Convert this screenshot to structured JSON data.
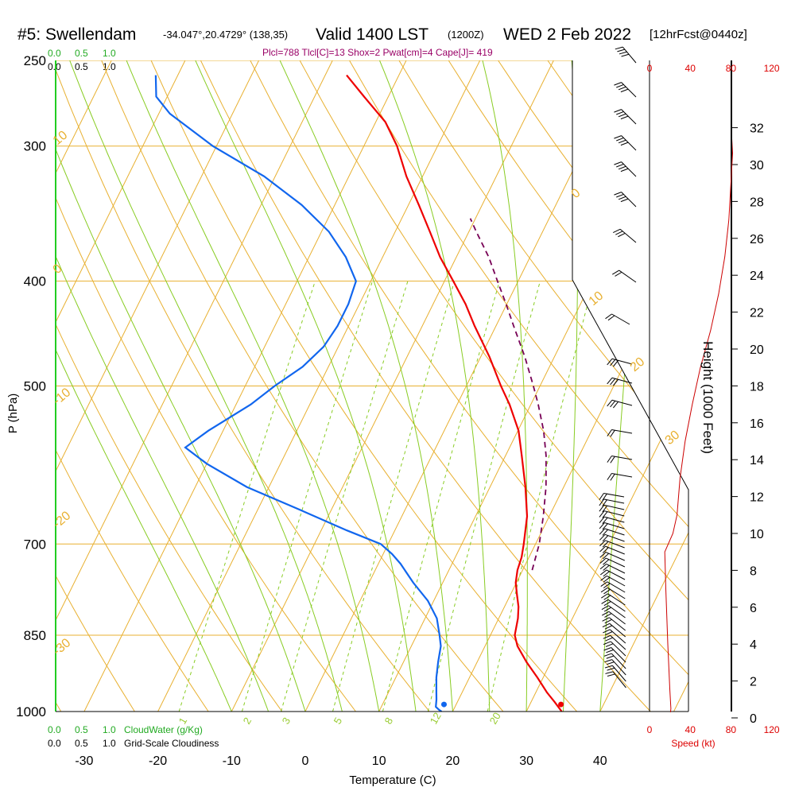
{
  "header": {
    "station": "#5: Swellendam",
    "coords": "-34.047°,20.4729° (138,35)",
    "valid": "Valid 1400 LST",
    "zulu": "(1200Z)",
    "date": "WED 2 Feb 2022",
    "forecast": "[12hrFcst@0440z]"
  },
  "indices": "Plcl=788 Tlcl[C]=13 Shox=2 Pwat[cm]=4 Cape[J]= 419",
  "labels": {
    "pressure_axis": "P (hPa)",
    "temperature_axis": "Temperature (C)",
    "height_axis": "Height (1000 Feet)",
    "speed_axis": "Speed (kt)",
    "cloudwater": "CloudWater (g/Kg)",
    "cloudiness": "Grid-Scale Cloudiness"
  },
  "top_scales": {
    "cloudwater_ticks": [
      "0.0",
      "0.5",
      "1.0"
    ],
    "cloudiness_ticks": [
      "0.0",
      "0.5",
      "1.0"
    ]
  },
  "chart_data": {
    "type": "line",
    "pressure_ticks": [
      "250",
      "300",
      "400",
      "500",
      "700",
      "850",
      "1000"
    ],
    "temperature_ticks": [
      "-30",
      "-20",
      "-10",
      "0",
      "10",
      "20",
      "30",
      "40"
    ],
    "height_ticks": [
      "0",
      "2",
      "4",
      "6",
      "8",
      "10",
      "12",
      "14",
      "16",
      "18",
      "20",
      "22",
      "24",
      "26",
      "28",
      "30",
      "32"
    ],
    "speed_ticks": [
      "0",
      "40",
      "80",
      "120"
    ],
    "isotherm_labels": [
      "10",
      "0",
      "-10",
      "-20",
      "-30",
      "0",
      "10",
      "20",
      "30"
    ],
    "mixing_ratio_labels": [
      "1",
      "2",
      "3",
      "5",
      "8",
      "12",
      "20"
    ],
    "series": [
      {
        "name": "temperature",
        "color": "#ee0000",
        "points": [
          [
            1000,
            34.8
          ],
          [
            980,
            33.2
          ],
          [
            960,
            31.5
          ],
          [
            930,
            29.2
          ],
          [
            900,
            26.7
          ],
          [
            870,
            24.4
          ],
          [
            850,
            23.3
          ],
          [
            820,
            22.6
          ],
          [
            800,
            21.9
          ],
          [
            780,
            20.9
          ],
          [
            760,
            19.9
          ],
          [
            740,
            19.3
          ],
          [
            720,
            19.0
          ],
          [
            700,
            18.4
          ],
          [
            660,
            17.0
          ],
          [
            620,
            14.8
          ],
          [
            580,
            12.2
          ],
          [
            550,
            10.1
          ],
          [
            520,
            7.1
          ],
          [
            500,
            4.7
          ],
          [
            470,
            1.2
          ],
          [
            440,
            -2.9
          ],
          [
            420,
            -5.6
          ],
          [
            400,
            -8.8
          ],
          [
            380,
            -12.2
          ],
          [
            360,
            -15.3
          ],
          [
            340,
            -18.6
          ],
          [
            320,
            -22.2
          ],
          [
            300,
            -25.5
          ],
          [
            285,
            -28.7
          ],
          [
            270,
            -33.3
          ],
          [
            258,
            -37.1
          ]
        ]
      },
      {
        "name": "dewpoint",
        "color": "#1166ee",
        "points": [
          [
            1000,
            18.5
          ],
          [
            996,
            18.0
          ],
          [
            990,
            17.4
          ],
          [
            975,
            17.0
          ],
          [
            960,
            16.5
          ],
          [
            930,
            15.5
          ],
          [
            900,
            14.7
          ],
          [
            870,
            14.0
          ],
          [
            850,
            13.1
          ],
          [
            820,
            11.6
          ],
          [
            790,
            9.2
          ],
          [
            760,
            6.0
          ],
          [
            730,
            3.0
          ],
          [
            715,
            1.2
          ],
          [
            700,
            -1.0
          ],
          [
            680,
            -6.5
          ],
          [
            650,
            -14.5
          ],
          [
            620,
            -23.0
          ],
          [
            590,
            -30.0
          ],
          [
            570,
            -34.0
          ],
          [
            550,
            -32.0
          ],
          [
            520,
            -28.0
          ],
          [
            500,
            -26.0
          ],
          [
            480,
            -23.5
          ],
          [
            460,
            -22.0
          ],
          [
            440,
            -21.5
          ],
          [
            420,
            -21.5
          ],
          [
            400,
            -22.0
          ],
          [
            380,
            -25.0
          ],
          [
            360,
            -29.0
          ],
          [
            340,
            -34.5
          ],
          [
            320,
            -41.5
          ],
          [
            300,
            -50.5
          ],
          [
            280,
            -58.5
          ],
          [
            270,
            -61.5
          ],
          [
            258,
            -63.0
          ]
        ]
      },
      {
        "name": "parcel",
        "color": "#770055",
        "points": [
          [
            740,
            21.3
          ],
          [
            700,
            20.5
          ],
          [
            660,
            19.2
          ],
          [
            620,
            17.6
          ],
          [
            580,
            15.5
          ],
          [
            550,
            13.5
          ],
          [
            520,
            11.0
          ],
          [
            500,
            9.1
          ],
          [
            470,
            6.0
          ],
          [
            440,
            2.4
          ],
          [
            420,
            -0.1
          ],
          [
            400,
            -2.8
          ],
          [
            380,
            -5.6
          ],
          [
            360,
            -9.0
          ],
          [
            350,
            -10.7
          ]
        ]
      }
    ],
    "surface_temperature_marker": 34.8,
    "surface_dewpoint_marker": 18.5,
    "pressure_range": [
      1000,
      250
    ],
    "temperature_range": [
      -35,
      47
    ]
  }
}
